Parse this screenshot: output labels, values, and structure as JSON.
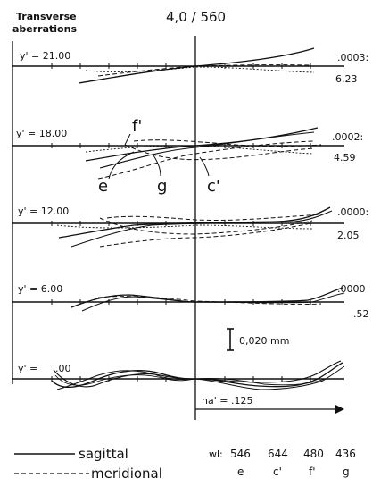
{
  "header": {
    "title_line1": "Transverse",
    "title_line2": "aberrations",
    "lens": "4,0 / 560"
  },
  "panels": [
    {
      "label": "y' = 21.00",
      "right_top": ".0003:",
      "right_bottom": "6.23"
    },
    {
      "label": "y' = 18.00",
      "right_top": ".0002:",
      "right_bottom": "4.59"
    },
    {
      "label": "y' = 12.00",
      "right_top": ".0000:",
      "right_bottom": "2.05"
    },
    {
      "label": "y' = 6.00",
      "right_top": ".0000",
      "right_bottom": ".52"
    },
    {
      "label": "y' =",
      "label_value": ".00",
      "right_top": "",
      "right_bottom": ""
    }
  ],
  "callouts": [
    "f'",
    "e",
    "g",
    "c'"
  ],
  "scale_bar": {
    "label": "0,020 mm"
  },
  "aperture": {
    "label": "na' = .125"
  },
  "legend": {
    "solid": "sagittal",
    "dashed": "meridional",
    "wl_prefix": "wl:",
    "wavelengths": [
      {
        "value": "546",
        "name": "e"
      },
      {
        "value": "644",
        "name": "c'"
      },
      {
        "value": "480",
        "name": "f'"
      },
      {
        "value": "436",
        "name": "g"
      }
    ]
  },
  "colors": {
    "ink": "#111111",
    "paper": "#ffffff"
  }
}
